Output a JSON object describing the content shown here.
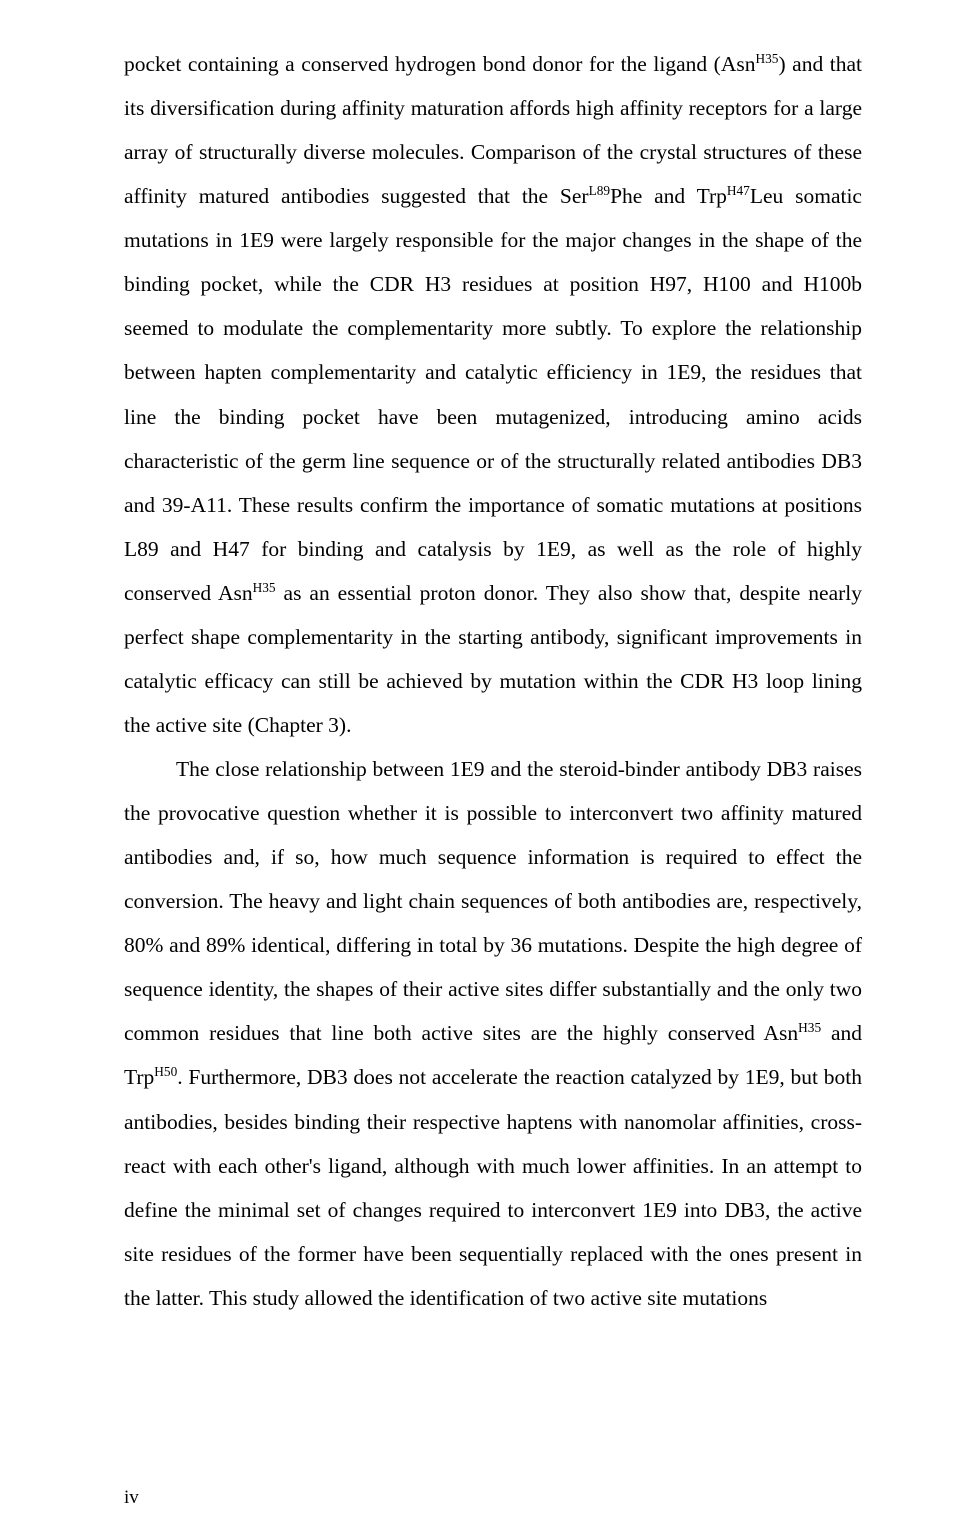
{
  "page": {
    "number": "iv"
  },
  "paragraphs": {
    "p1": {
      "text": "pocket containing a conserved hydrogen bond donor for the ligand (Asn",
      "sup1": "H35",
      "text2": ") and that its diversification during affinity maturation affords high affinity receptors for a large array of structurally diverse molecules. Comparison of the crystal structures of these affinity matured antibodies suggested that the Ser",
      "sup2": "L89",
      "text3": "Phe and Trp",
      "sup3": "H47",
      "text4": "Leu somatic mutations in 1E9 were largely responsible for the major changes in the shape of the binding pocket, while the CDR H3 residues at position H97, H100 and H100b seemed to modulate the complementarity more subtly. To explore the relationship between hapten complementarity and catalytic efficiency in 1E9, the residues that line the binding pocket have been mutagenized, introducing amino acids characteristic of the germ line sequence or of the structurally related antibodies DB3 and 39-A11. These results confirm the importance of somatic mutations at positions L89 and H47 for binding and catalysis by 1E9, as well as the role of highly conserved Asn",
      "sup4": "H35",
      "text5": " as an essential proton donor. They also show that, despite nearly perfect shape complementarity in the starting antibody, significant improvements in catalytic efficacy can still be achieved by mutation within the CDR H3 loop lining the active site (Chapter 3)."
    },
    "p2": {
      "text": "The close relationship between 1E9 and the steroid-binder antibody DB3 raises the provocative question whether it is possible to interconvert two affinity matured antibodies and, if so, how much sequence information is required to effect the conversion. The heavy and light chain sequences of both antibodies are, respectively, 80% and 89% identical, differing in total by 36 mutations. Despite the high degree of sequence identity, the shapes of their active sites differ substantially and the only two common residues that line both active sites are the highly conserved Asn",
      "sup1": "H35",
      "text2": " and Trp",
      "sup2": "H50",
      "text3": ". Furthermore, DB3 does not accelerate the reaction catalyzed by 1E9, but both antibodies, besides binding their respective haptens with nanomolar affinities, cross-react with each other's ligand, although with much lower affinities. In an attempt to define the minimal set of changes required to interconvert 1E9 into DB3, the active site residues of the former have been sequentially replaced with the ones present in the latter. This study allowed the identification of two active site mutations"
    }
  }
}
